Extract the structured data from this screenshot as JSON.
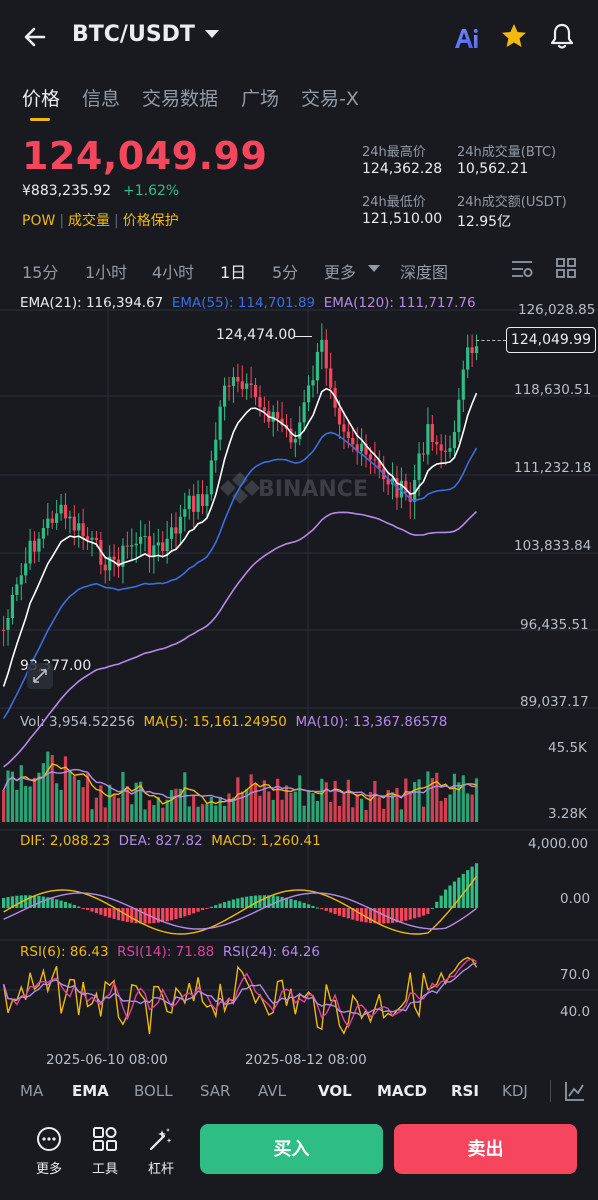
{
  "header": {
    "pair": "BTC/USDT",
    "icons": [
      "back-arrow-icon",
      "dropdown-caret-icon",
      "ai-icon",
      "star-icon",
      "bell-icon"
    ]
  },
  "tabs": [
    {
      "label": "价格",
      "active": true
    },
    {
      "label": "信息",
      "active": false
    },
    {
      "label": "交易数据",
      "active": false
    },
    {
      "label": "广场",
      "active": false
    },
    {
      "label": "交易-X",
      "active": false
    }
  ],
  "price": {
    "last": "124,049.99",
    "cny": "¥883,235.92",
    "change": "+1.62%",
    "tags": [
      "POW",
      "成交量",
      "价格保护"
    ]
  },
  "stats": {
    "high_label": "24h最高价",
    "high": "124,362.28",
    "vol_btc_label": "24h成交量(BTC)",
    "vol_btc": "10,562.21",
    "low_label": "24h最低价",
    "low": "121,510.00",
    "vol_usdt_label": "24h成交额(USDT)",
    "vol_usdt": "12.95亿"
  },
  "intervals": [
    {
      "label": "15分",
      "active": false
    },
    {
      "label": "1小时",
      "active": false
    },
    {
      "label": "4小时",
      "active": false
    },
    {
      "label": "1日",
      "active": true
    },
    {
      "label": "5分",
      "active": false
    },
    {
      "label": "更多",
      "active": false
    },
    {
      "label": "深度图",
      "active": false
    }
  ],
  "ema": {
    "ema21": "EMA(21): 116,394.67",
    "ema55": "EMA(55): 114,701.89",
    "ema120": "EMA(120): 111,717.76"
  },
  "price_axis": [
    "126,028.85",
    "118,630.51",
    "111,232.18",
    "103,833.84",
    "96,435.51",
    "89,037.17"
  ],
  "annotations": {
    "high": "124,474.00",
    "low": "93,377.00",
    "current": "124,049.99"
  },
  "watermark": "BINANCE",
  "volume": {
    "vol": "Vol: 3,954.52256",
    "ma5": "MA(5): 15,161.24950",
    "ma10": "MA(10): 13,367.86578",
    "axis": [
      "45.5K",
      "3.28K"
    ]
  },
  "macd": {
    "dif": "DIF: 2,088.23",
    "dea": "DEA: 827.82",
    "macd": "MACD: 1,260.41",
    "axis": [
      "4,000.00",
      "0.00"
    ]
  },
  "rsi": {
    "rsi6": "RSI(6): 86.43",
    "rsi14": "RSI(14): 71.88",
    "rsi24": "RSI(24): 64.26",
    "axis": [
      "70.0",
      "40.0"
    ]
  },
  "dates": [
    "2025-06-10 08:00",
    "2025-08-12 08:00"
  ],
  "indicators": [
    {
      "label": "MA",
      "active": false
    },
    {
      "label": "EMA",
      "active": true
    },
    {
      "label": "BOLL",
      "active": false
    },
    {
      "label": "SAR",
      "active": false
    },
    {
      "label": "AVL",
      "active": false
    },
    {
      "label": "VOL",
      "active": true
    },
    {
      "label": "MACD",
      "active": true
    },
    {
      "label": "RSI",
      "active": true
    },
    {
      "label": "KDJ",
      "active": false
    }
  ],
  "bottom": {
    "more": "更多",
    "tools": "工具",
    "leverage": "杠杆",
    "buy": "买入",
    "sell": "卖出"
  },
  "colors": {
    "up": "#2ebd85",
    "down": "#f6465d",
    "accent": "#f0b90b",
    "ema21": "#ffffff",
    "ema55": "#3b6fe0",
    "ema120": "#b48ae6",
    "ma5": "#f0b90b",
    "ma10": "#b48ae6"
  }
}
